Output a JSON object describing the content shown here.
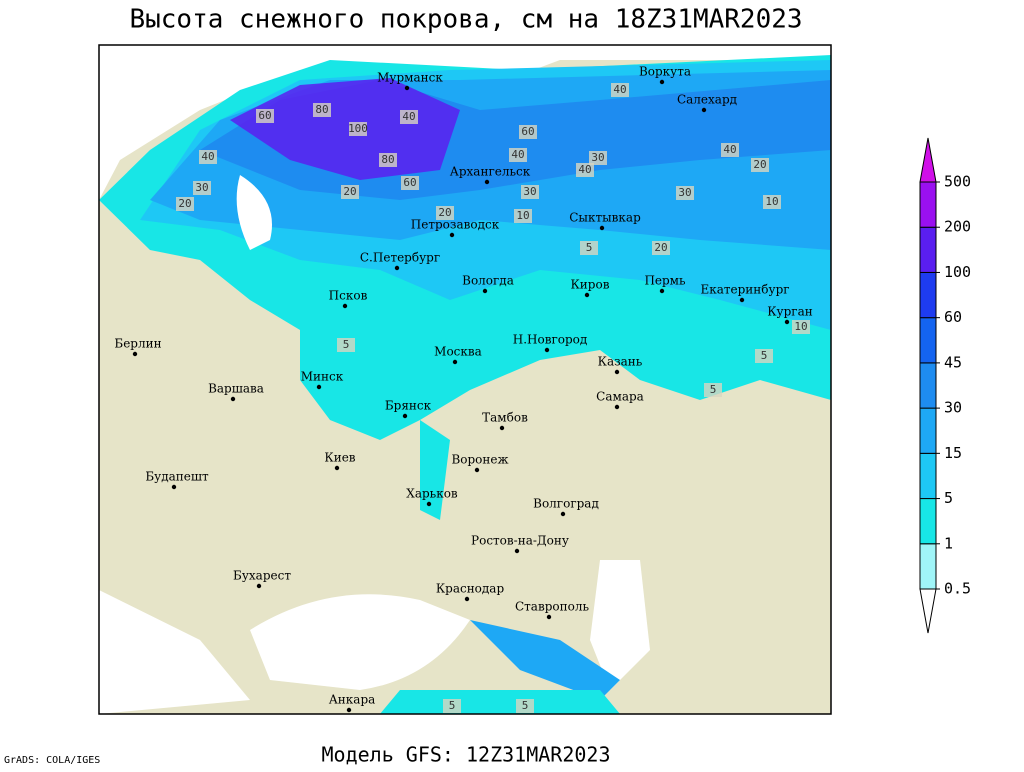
{
  "title": "Высота снежного покрова, см на 18Z31MAR2023",
  "footer": "Модель GFS: 12Z31MAR2023",
  "credit": "GrADS: COLA/IGES",
  "cities": [
    "Мурманск",
    "Воркута",
    "Салехард",
    "Архангельск",
    "Петрозаводск",
    "Сыктывкар",
    "С.Петербург",
    "Вологда",
    "Киров",
    "Пермь",
    "Екатеринбург",
    "Курган",
    "Псков",
    "Берлин",
    "Н.Новгород",
    "Москва",
    "Казань",
    "Минск",
    "Варшава",
    "Самара",
    "Брянск",
    "Тамбов",
    "Киев",
    "Воронеж",
    "Будапешт",
    "Харьков",
    "Волгоград",
    "Ростов-на-Дону",
    "Бухарест",
    "Краснодар",
    "Ставрополь",
    "Анкара"
  ],
  "contour_labels": [
    60,
    80,
    100,
    80,
    60,
    40,
    40,
    30,
    20,
    20,
    40,
    60,
    40,
    30,
    40,
    30,
    20,
    10,
    20,
    5,
    10,
    5,
    5,
    5,
    5,
    40,
    30,
    20,
    10,
    5
  ],
  "colorbar": {
    "levels": [
      0.5,
      1,
      5,
      15,
      30,
      45,
      60,
      100,
      200,
      500
    ],
    "colors": [
      "#ffffff",
      "#a0f5f8",
      "#18e6e6",
      "#1ec8f5",
      "#1ea8f5",
      "#1e8cf0",
      "#1464f0",
      "#1e3cf0",
      "#5a1ef0",
      "#9a10f0",
      "#d010e8"
    ]
  }
}
